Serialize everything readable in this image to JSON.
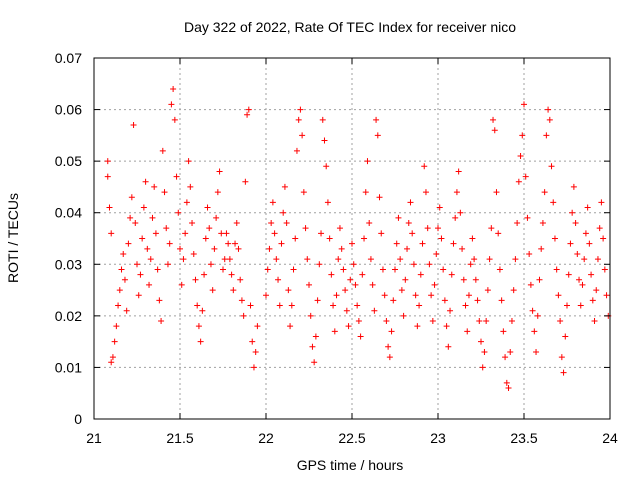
{
  "chart_data": {
    "type": "scatter",
    "title": "Day 322 of 2022, Rate Of TEC Index for receiver nico",
    "xlabel": "GPS time / hours",
    "ylabel": "ROTI / TECUs",
    "xlim": [
      21,
      24
    ],
    "ylim": [
      0,
      0.07
    ],
    "x_ticks": [
      21,
      21.5,
      22,
      22.5,
      23,
      23.5,
      24
    ],
    "x_tick_labels": [
      "21",
      "21.5",
      "22",
      "22.5",
      "23",
      "23.5",
      "24"
    ],
    "y_ticks": [
      0,
      0.01,
      0.02,
      0.03,
      0.04,
      0.05,
      0.06,
      0.07
    ],
    "y_tick_labels": [
      "0",
      "0.01",
      "0.02",
      "0.03",
      "0.04",
      "0.05",
      "0.06",
      "0.07"
    ],
    "grid": true,
    "marker": "plus",
    "color": "#ff0000",
    "series": [
      {
        "values": [
          [
            21.08,
            0.05
          ],
          [
            21.08,
            0.047
          ],
          [
            21.09,
            0.041
          ],
          [
            21.1,
            0.036
          ],
          [
            21.1,
            0.011
          ],
          [
            21.11,
            0.012
          ],
          [
            21.12,
            0.015
          ],
          [
            21.13,
            0.018
          ],
          [
            21.14,
            0.022
          ],
          [
            21.15,
            0.025
          ],
          [
            21.16,
            0.029
          ],
          [
            21.17,
            0.032
          ],
          [
            21.18,
            0.027
          ],
          [
            21.19,
            0.021
          ],
          [
            21.2,
            0.034
          ],
          [
            21.21,
            0.039
          ],
          [
            21.22,
            0.043
          ],
          [
            21.23,
            0.057
          ],
          [
            21.24,
            0.038
          ],
          [
            21.25,
            0.03
          ],
          [
            21.26,
            0.024
          ],
          [
            21.27,
            0.028
          ],
          [
            21.28,
            0.035
          ],
          [
            21.29,
            0.041
          ],
          [
            21.3,
            0.046
          ],
          [
            21.31,
            0.033
          ],
          [
            21.32,
            0.026
          ],
          [
            21.33,
            0.031
          ],
          [
            21.34,
            0.039
          ],
          [
            21.35,
            0.045
          ],
          [
            21.36,
            0.036
          ],
          [
            21.37,
            0.029
          ],
          [
            21.38,
            0.023
          ],
          [
            21.39,
            0.019
          ],
          [
            21.4,
            0.052
          ],
          [
            21.41,
            0.044
          ],
          [
            21.42,
            0.037
          ],
          [
            21.43,
            0.03
          ],
          [
            21.44,
            0.034
          ],
          [
            21.45,
            0.061
          ],
          [
            21.46,
            0.064
          ],
          [
            21.47,
            0.058
          ],
          [
            21.48,
            0.047
          ],
          [
            21.49,
            0.04
          ],
          [
            21.5,
            0.033
          ],
          [
            21.51,
            0.026
          ],
          [
            21.52,
            0.031
          ],
          [
            21.53,
            0.036
          ],
          [
            21.54,
            0.042
          ],
          [
            21.55,
            0.05
          ],
          [
            21.56,
            0.045
          ],
          [
            21.57,
            0.038
          ],
          [
            21.58,
            0.032
          ],
          [
            21.59,
            0.027
          ],
          [
            21.6,
            0.022
          ],
          [
            21.61,
            0.018
          ],
          [
            21.62,
            0.015
          ],
          [
            21.63,
            0.021
          ],
          [
            21.64,
            0.028
          ],
          [
            21.65,
            0.035
          ],
          [
            21.66,
            0.041
          ],
          [
            21.67,
            0.037
          ],
          [
            21.68,
            0.03
          ],
          [
            21.69,
            0.025
          ],
          [
            21.7,
            0.033
          ],
          [
            21.71,
            0.039
          ],
          [
            21.72,
            0.044
          ],
          [
            21.73,
            0.048
          ],
          [
            21.74,
            0.036
          ],
          [
            21.75,
            0.029
          ],
          [
            21.76,
            0.031
          ],
          [
            21.77,
            0.036
          ],
          [
            21.78,
            0.034
          ],
          [
            21.79,
            0.031
          ],
          [
            21.8,
            0.028
          ],
          [
            21.81,
            0.025
          ],
          [
            21.82,
            0.034
          ],
          [
            21.83,
            0.038
          ],
          [
            21.84,
            0.033
          ],
          [
            21.85,
            0.027
          ],
          [
            21.86,
            0.023
          ],
          [
            21.87,
            0.02
          ],
          [
            21.88,
            0.046
          ],
          [
            21.89,
            0.059
          ],
          [
            21.9,
            0.06
          ],
          [
            21.91,
            0.022
          ],
          [
            21.92,
            0.015
          ],
          [
            21.93,
            0.01
          ],
          [
            21.94,
            0.013
          ],
          [
            21.95,
            0.018
          ],
          [
            22.0,
            0.024
          ],
          [
            22.01,
            0.029
          ],
          [
            22.02,
            0.033
          ],
          [
            22.03,
            0.038
          ],
          [
            22.04,
            0.042
          ],
          [
            22.05,
            0.036
          ],
          [
            22.06,
            0.031
          ],
          [
            22.07,
            0.027
          ],
          [
            22.08,
            0.022
          ],
          [
            22.09,
            0.034
          ],
          [
            22.1,
            0.04
          ],
          [
            22.11,
            0.045
          ],
          [
            22.12,
            0.038
          ],
          [
            22.13,
            0.025
          ],
          [
            22.14,
            0.018
          ],
          [
            22.15,
            0.022
          ],
          [
            22.16,
            0.029
          ],
          [
            22.17,
            0.035
          ],
          [
            22.18,
            0.052
          ],
          [
            22.19,
            0.058
          ],
          [
            22.2,
            0.06
          ],
          [
            22.21,
            0.055
          ],
          [
            22.22,
            0.044
          ],
          [
            22.23,
            0.037
          ],
          [
            22.24,
            0.031
          ],
          [
            22.25,
            0.026
          ],
          [
            22.26,
            0.02
          ],
          [
            22.27,
            0.014
          ],
          [
            22.28,
            0.011
          ],
          [
            22.29,
            0.016
          ],
          [
            22.3,
            0.023
          ],
          [
            22.31,
            0.03
          ],
          [
            22.32,
            0.036
          ],
          [
            22.33,
            0.058
          ],
          [
            22.34,
            0.054
          ],
          [
            22.35,
            0.049
          ],
          [
            22.36,
            0.042
          ],
          [
            22.37,
            0.035
          ],
          [
            22.38,
            0.028
          ],
          [
            22.39,
            0.022
          ],
          [
            22.4,
            0.017
          ],
          [
            22.41,
            0.024
          ],
          [
            22.42,
            0.031
          ],
          [
            22.43,
            0.037
          ],
          [
            22.44,
            0.033
          ],
          [
            22.45,
            0.029
          ],
          [
            22.46,
            0.025
          ],
          [
            22.47,
            0.021
          ],
          [
            22.48,
            0.018
          ],
          [
            22.49,
            0.027
          ],
          [
            22.5,
            0.034
          ],
          [
            22.51,
            0.03
          ],
          [
            22.52,
            0.026
          ],
          [
            22.53,
            0.022
          ],
          [
            22.54,
            0.019
          ],
          [
            22.55,
            0.016
          ],
          [
            22.56,
            0.028
          ],
          [
            22.57,
            0.035
          ],
          [
            22.58,
            0.044
          ],
          [
            22.59,
            0.05
          ],
          [
            22.6,
            0.038
          ],
          [
            22.61,
            0.031
          ],
          [
            22.62,
            0.026
          ],
          [
            22.63,
            0.021
          ],
          [
            22.64,
            0.058
          ],
          [
            22.65,
            0.055
          ],
          [
            22.66,
            0.043
          ],
          [
            22.67,
            0.036
          ],
          [
            22.68,
            0.029
          ],
          [
            22.69,
            0.024
          ],
          [
            22.7,
            0.019
          ],
          [
            22.71,
            0.014
          ],
          [
            22.72,
            0.012
          ],
          [
            22.73,
            0.017
          ],
          [
            22.74,
            0.023
          ],
          [
            22.75,
            0.029
          ],
          [
            22.76,
            0.034
          ],
          [
            22.77,
            0.039
          ],
          [
            22.78,
            0.031
          ],
          [
            22.79,
            0.025
          ],
          [
            22.8,
            0.02
          ],
          [
            22.81,
            0.027
          ],
          [
            22.82,
            0.033
          ],
          [
            22.83,
            0.038
          ],
          [
            22.84,
            0.042
          ],
          [
            22.85,
            0.036
          ],
          [
            22.86,
            0.03
          ],
          [
            22.87,
            0.024
          ],
          [
            22.88,
            0.018
          ],
          [
            22.89,
            0.022
          ],
          [
            22.9,
            0.028
          ],
          [
            22.91,
            0.034
          ],
          [
            22.92,
            0.049
          ],
          [
            22.93,
            0.044
          ],
          [
            22.94,
            0.037
          ],
          [
            22.95,
            0.03
          ],
          [
            22.96,
            0.024
          ],
          [
            22.97,
            0.019
          ],
          [
            22.98,
            0.026
          ],
          [
            22.99,
            0.032
          ],
          [
            23.0,
            0.037
          ],
          [
            23.01,
            0.041
          ],
          [
            23.02,
            0.035
          ],
          [
            23.03,
            0.029
          ],
          [
            23.04,
            0.023
          ],
          [
            23.05,
            0.018
          ],
          [
            23.06,
            0.014
          ],
          [
            23.07,
            0.021
          ],
          [
            23.08,
            0.028
          ],
          [
            23.09,
            0.034
          ],
          [
            23.1,
            0.039
          ],
          [
            23.11,
            0.044
          ],
          [
            23.12,
            0.048
          ],
          [
            23.13,
            0.04
          ],
          [
            23.14,
            0.033
          ],
          [
            23.15,
            0.027
          ],
          [
            23.16,
            0.022
          ],
          [
            23.17,
            0.017
          ],
          [
            23.18,
            0.024
          ],
          [
            23.19,
            0.03
          ],
          [
            23.2,
            0.035
          ],
          [
            23.21,
            0.031
          ],
          [
            23.22,
            0.027
          ],
          [
            23.23,
            0.023
          ],
          [
            23.24,
            0.019
          ],
          [
            23.25,
            0.015
          ],
          [
            23.26,
            0.01
          ],
          [
            23.27,
            0.013
          ],
          [
            23.28,
            0.019
          ],
          [
            23.29,
            0.025
          ],
          [
            23.3,
            0.031
          ],
          [
            23.31,
            0.037
          ],
          [
            23.32,
            0.058
          ],
          [
            23.33,
            0.056
          ],
          [
            23.34,
            0.044
          ],
          [
            23.35,
            0.036
          ],
          [
            23.36,
            0.029
          ],
          [
            23.37,
            0.023
          ],
          [
            23.38,
            0.017
          ],
          [
            23.39,
            0.012
          ],
          [
            23.4,
            0.007
          ],
          [
            23.41,
            0.006
          ],
          [
            23.42,
            0.013
          ],
          [
            23.43,
            0.019
          ],
          [
            23.44,
            0.025
          ],
          [
            23.45,
            0.031
          ],
          [
            23.46,
            0.038
          ],
          [
            23.47,
            0.046
          ],
          [
            23.48,
            0.051
          ],
          [
            23.49,
            0.055
          ],
          [
            23.5,
            0.061
          ],
          [
            23.51,
            0.047
          ],
          [
            23.52,
            0.039
          ],
          [
            23.53,
            0.032
          ],
          [
            23.54,
            0.026
          ],
          [
            23.55,
            0.021
          ],
          [
            23.56,
            0.017
          ],
          [
            23.57,
            0.013
          ],
          [
            23.58,
            0.02
          ],
          [
            23.59,
            0.027
          ],
          [
            23.6,
            0.033
          ],
          [
            23.61,
            0.038
          ],
          [
            23.62,
            0.044
          ],
          [
            23.63,
            0.055
          ],
          [
            23.64,
            0.06
          ],
          [
            23.65,
            0.058
          ],
          [
            23.66,
            0.049
          ],
          [
            23.67,
            0.042
          ],
          [
            23.68,
            0.035
          ],
          [
            23.69,
            0.029
          ],
          [
            23.7,
            0.024
          ],
          [
            23.71,
            0.019
          ],
          [
            23.72,
            0.012
          ],
          [
            23.73,
            0.009
          ],
          [
            23.74,
            0.016
          ],
          [
            23.75,
            0.022
          ],
          [
            23.76,
            0.028
          ],
          [
            23.77,
            0.034
          ],
          [
            23.78,
            0.04
          ],
          [
            23.79,
            0.045
          ],
          [
            23.8,
            0.038
          ],
          [
            23.81,
            0.032
          ],
          [
            23.82,
            0.027
          ],
          [
            23.83,
            0.022
          ],
          [
            23.84,
            0.026
          ],
          [
            23.85,
            0.031
          ],
          [
            23.86,
            0.036
          ],
          [
            23.87,
            0.041
          ],
          [
            23.88,
            0.034
          ],
          [
            23.89,
            0.028
          ],
          [
            23.9,
            0.023
          ],
          [
            23.91,
            0.019
          ],
          [
            23.92,
            0.025
          ],
          [
            23.93,
            0.031
          ],
          [
            23.94,
            0.037
          ],
          [
            23.95,
            0.042
          ],
          [
            23.96,
            0.035
          ],
          [
            23.97,
            0.029
          ],
          [
            23.98,
            0.024
          ],
          [
            23.99,
            0.02
          ]
        ]
      }
    ]
  }
}
